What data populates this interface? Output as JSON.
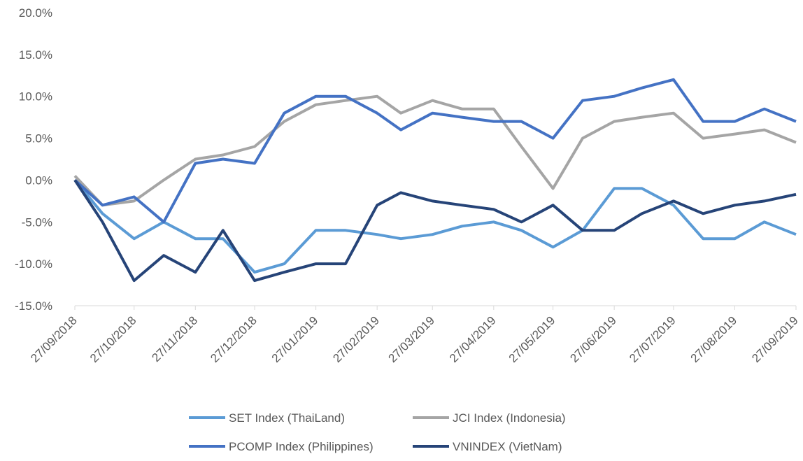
{
  "chart_data": {
    "type": "line",
    "x": [
      "27/09/2018",
      "11/10/2018",
      "27/10/2018",
      "11/11/2018",
      "27/11/2018",
      "11/12/2018",
      "27/12/2018",
      "11/01/2019",
      "27/01/2019",
      "11/02/2019",
      "27/02/2019",
      "11/03/2019",
      "27/03/2019",
      "11/04/2019",
      "27/04/2019",
      "11/05/2019",
      "27/05/2019",
      "11/06/2019",
      "27/06/2019",
      "11/07/2019",
      "27/07/2019",
      "11/08/2019",
      "27/08/2019",
      "11/09/2019",
      "27/09/2019"
    ],
    "series": [
      {
        "name": "SET Index (ThaiLand)",
        "color": "#5b9bd5",
        "values": [
          0,
          -4,
          -7,
          -5,
          -7,
          -7,
          -11,
          -10,
          -6,
          -6,
          -6.5,
          -7,
          -6.5,
          -5.5,
          -5,
          -6,
          -8,
          -6,
          -1,
          -1,
          -3,
          -7,
          -7,
          -5,
          -6.5
        ]
      },
      {
        "name": "JCI Index (Indonesia)",
        "color": "#a5a5a5",
        "values": [
          0.5,
          -3,
          -2.5,
          0,
          2.5,
          3,
          4,
          7,
          9,
          9.5,
          10,
          8,
          9.5,
          8.5,
          8.5,
          4,
          -1,
          5,
          7,
          7.5,
          8,
          5,
          5.5,
          6,
          4.5
        ]
      },
      {
        "name": "PCOMP Index (Philippines)",
        "color": "#4472c4",
        "values": [
          0,
          -3,
          -2,
          -5,
          2,
          2.5,
          2,
          8,
          10,
          10,
          8,
          6,
          8,
          7.5,
          7,
          7,
          5,
          9.5,
          10,
          11,
          12,
          7,
          7,
          8.5,
          7
        ]
      },
      {
        "name": "VNINDEX (VietNam)",
        "color": "#264478",
        "values": [
          0,
          -5,
          -12,
          -9,
          -11,
          -6,
          -12,
          -11,
          -10,
          -10,
          -3,
          -1.5,
          -2.5,
          -3,
          -3.5,
          -5,
          -3,
          -6,
          -6,
          -4,
          -2.5,
          -4,
          -3,
          -2.5,
          -1.7
        ]
      }
    ],
    "ylim": [
      -15,
      20
    ],
    "yticks": [
      {
        "value": -15,
        "label": "-15.0%"
      },
      {
        "value": -10,
        "label": "-10.0%"
      },
      {
        "value": -5,
        "label": "-5.0%"
      },
      {
        "value": 0,
        "label": "0.0%"
      },
      {
        "value": 5,
        "label": "5.0%"
      },
      {
        "value": 10,
        "label": "10.0%"
      },
      {
        "value": 15,
        "label": "15.0%"
      },
      {
        "value": 20,
        "label": "20.0%"
      }
    ],
    "xlim": [
      "27/09/2018",
      "27/09/2019"
    ],
    "xticks": [
      "27/09/2018",
      "27/10/2018",
      "27/11/2018",
      "27/12/2018",
      "27/01/2019",
      "27/02/2019",
      "27/03/2019",
      "27/04/2019",
      "27/05/2019",
      "27/06/2019",
      "27/07/2019",
      "27/08/2019",
      "27/09/2019"
    ],
    "legend": "bottom"
  }
}
